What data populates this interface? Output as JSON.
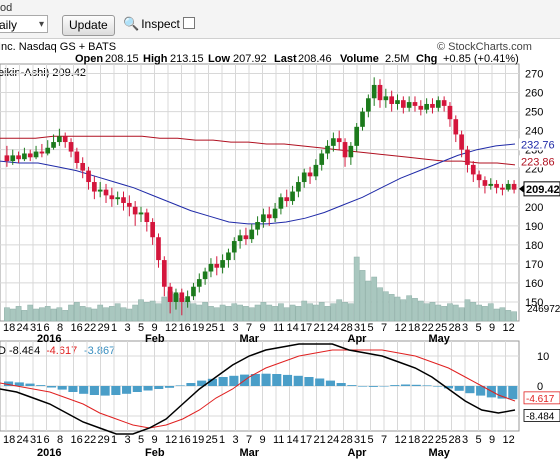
{
  "toolbar": {
    "period_label": "od",
    "period_value": "aily",
    "update_label": "Update",
    "inspect_label": "Inspect"
  },
  "header": {
    "exchange": "Inc. Nasdaq GS + BATS",
    "watermark": "© StockCharts.com",
    "open_label": "Open",
    "open_value": "208.15",
    "high_label": "High",
    "high_value": "213.15",
    "low_label": "Low",
    "low_value": "207.92",
    "last_label": "Last",
    "last_value": "208.46",
    "volume_label": "Volume",
    "volume_value": "2.5M",
    "chg_label": "Chg",
    "chg_value": "+0.85 (+0.41%)",
    "legend_text": "eikin-Ashi) 209.42"
  },
  "macd": {
    "legend_prefix": "D",
    "value_main": "-8.484",
    "value_signal": "-4.617",
    "value_hist": "-3.867"
  },
  "colors": {
    "bull": "#1c7a1c",
    "bear": "#d4163c",
    "ma_long": "#b01020",
    "ma_short": "#1f2aa8",
    "volume": "#a9c7bf",
    "hist": "#4a9ec8",
    "macd_line": "#000000",
    "signal_line": "#e02020",
    "grid": "#d8d8d8"
  },
  "chart_data": [
    {
      "type": "candlestick",
      "title": "Heikin-Ashi",
      "ylim": [
        140,
        275
      ],
      "y_ticks": [
        150,
        160,
        170,
        180,
        190,
        200,
        210,
        220,
        230,
        240,
        250,
        260,
        270
      ],
      "last_value_label": "209.42",
      "ma_long_label": "223.86",
      "ma_short_label": "232.76",
      "volume_label": "246972",
      "candles": [
        [
          227,
          224,
          232,
          221
        ],
        [
          224,
          227,
          230,
          222
        ],
        [
          227,
          225,
          229,
          223
        ],
        [
          225,
          228,
          231,
          224
        ],
        [
          228,
          226,
          230,
          224
        ],
        [
          226,
          229,
          232,
          225
        ],
        [
          229,
          228,
          233,
          226
        ],
        [
          228,
          231,
          235,
          227
        ],
        [
          231,
          234,
          238,
          230
        ],
        [
          234,
          237,
          241,
          232
        ],
        [
          237,
          234,
          239,
          231
        ],
        [
          234,
          229,
          236,
          226
        ],
        [
          229,
          223,
          231,
          220
        ],
        [
          223,
          219,
          226,
          215
        ],
        [
          219,
          213,
          221,
          209
        ],
        [
          213,
          208,
          216,
          204
        ],
        [
          208,
          209,
          213,
          205
        ],
        [
          209,
          206,
          212,
          202
        ],
        [
          206,
          204,
          210,
          200
        ],
        [
          204,
          205,
          208,
          201
        ],
        [
          205,
          202,
          208,
          198
        ],
        [
          202,
          200,
          206,
          195
        ],
        [
          200,
          196,
          203,
          190
        ],
        [
          196,
          197,
          200,
          192
        ],
        [
          197,
          192,
          199,
          187
        ],
        [
          192,
          184,
          194,
          180
        ],
        [
          184,
          172,
          186,
          168
        ],
        [
          172,
          158,
          174,
          153
        ],
        [
          158,
          150,
          160,
          144
        ],
        [
          150,
          155,
          157,
          146
        ],
        [
          155,
          150,
          157,
          143
        ],
        [
          150,
          153,
          156,
          147
        ],
        [
          153,
          158,
          160,
          151
        ],
        [
          158,
          162,
          165,
          155
        ],
        [
          162,
          166,
          168,
          159
        ],
        [
          166,
          170,
          173,
          163
        ],
        [
          170,
          168,
          174,
          164
        ],
        [
          168,
          172,
          175,
          165
        ],
        [
          172,
          176,
          178,
          168
        ],
        [
          176,
          182,
          184,
          172
        ],
        [
          182,
          185,
          188,
          178
        ],
        [
          185,
          183,
          189,
          180
        ],
        [
          183,
          188,
          191,
          181
        ],
        [
          188,
          192,
          195,
          185
        ],
        [
          192,
          196,
          199,
          189
        ],
        [
          196,
          194,
          200,
          190
        ],
        [
          194,
          199,
          202,
          192
        ],
        [
          199,
          205,
          207,
          196
        ],
        [
          205,
          203,
          209,
          200
        ],
        [
          203,
          208,
          211,
          201
        ],
        [
          208,
          213,
          216,
          205
        ],
        [
          213,
          218,
          220,
          210
        ],
        [
          218,
          216,
          221,
          212
        ],
        [
          216,
          222,
          225,
          214
        ],
        [
          222,
          228,
          230,
          219
        ],
        [
          228,
          232,
          235,
          225
        ],
        [
          232,
          236,
          239,
          229
        ],
        [
          236,
          234,
          240,
          230
        ],
        [
          234,
          226,
          236,
          221
        ],
        [
          226,
          232,
          234,
          222
        ],
        [
          232,
          242,
          244,
          229
        ],
        [
          242,
          250,
          252,
          240
        ],
        [
          250,
          257,
          259,
          247
        ],
        [
          257,
          264,
          268,
          253
        ],
        [
          264,
          256,
          267,
          252
        ],
        [
          256,
          258,
          262,
          252
        ],
        [
          258,
          254,
          261,
          250
        ],
        [
          254,
          256,
          259,
          251
        ],
        [
          256,
          252,
          258,
          249
        ],
        [
          252,
          255,
          258,
          250
        ],
        [
          255,
          253,
          258,
          250
        ],
        [
          253,
          251,
          256,
          248
        ],
        [
          251,
          254,
          257,
          249
        ],
        [
          254,
          252,
          257,
          249
        ],
        [
          252,
          256,
          258,
          250
        ],
        [
          256,
          253,
          258,
          250
        ],
        [
          253,
          246,
          255,
          242
        ],
        [
          246,
          238,
          248,
          234
        ],
        [
          238,
          230,
          240,
          226
        ],
        [
          230,
          222,
          232,
          218
        ],
        [
          222,
          217,
          224,
          213
        ],
        [
          217,
          214,
          219,
          210
        ],
        [
          214,
          211,
          216,
          207
        ],
        [
          211,
          212,
          215,
          209
        ],
        [
          212,
          210,
          214,
          207
        ],
        [
          210,
          209,
          212,
          206
        ],
        [
          209,
          212,
          214,
          208
        ],
        [
          212,
          209,
          214,
          207
        ]
      ],
      "ma_long": [
        236,
        236,
        236,
        237,
        237,
        237,
        237,
        237,
        237,
        236,
        236,
        235,
        235,
        234,
        234,
        233,
        233,
        232,
        231,
        230,
        229,
        228,
        227,
        226,
        225,
        224,
        224,
        223,
        223,
        222
      ],
      "ma_short": [
        224,
        223,
        223,
        221,
        219,
        216,
        213,
        210,
        206,
        202,
        198,
        195,
        192,
        191,
        191,
        192,
        194,
        197,
        201,
        205,
        210,
        215,
        219,
        223,
        227,
        230,
        232,
        233
      ],
      "volume": [
        10,
        9,
        11,
        8,
        12,
        9,
        10,
        11,
        9,
        10,
        8,
        12,
        14,
        11,
        10,
        9,
        12,
        10,
        11,
        13,
        10,
        9,
        12,
        16,
        14,
        15,
        13,
        18,
        22,
        20,
        17,
        15,
        13,
        12,
        14,
        11,
        10,
        12,
        11,
        13,
        12,
        11,
        10,
        12,
        14,
        12,
        11,
        13,
        10,
        12,
        11,
        15,
        13,
        12,
        14,
        11,
        13,
        16,
        14,
        13,
        48,
        38,
        30,
        33,
        25,
        22,
        20,
        18,
        16,
        19,
        17,
        15,
        13,
        14,
        12,
        11,
        13,
        12,
        10,
        16,
        14,
        12,
        11,
        13,
        9,
        10,
        8,
        7
      ]
    },
    {
      "type": "bar-line",
      "title": "MACD",
      "ylim": [
        -15,
        15
      ],
      "y_ticks": [
        -10,
        0,
        10
      ],
      "value_labels": [
        "-4.617",
        "-8.484"
      ],
      "x_ticks": [
        "18",
        "24",
        "31",
        "6",
        "8",
        "16",
        "22",
        "29",
        "1",
        "3",
        "5",
        "9",
        "12",
        "16",
        "19",
        "25",
        "1",
        "3",
        "7",
        "9",
        "11",
        "14",
        "17",
        "21",
        "24",
        "28",
        "31",
        "5",
        "7",
        "12",
        "18",
        "22",
        "25",
        "28",
        "3",
        "5",
        "9",
        "12"
      ],
      "x_major": [
        "2016",
        "Feb",
        "Mar",
        "Apr",
        "May"
      ],
      "hist": [
        1.5,
        1.2,
        0.8,
        0.3,
        -0.5,
        -1.2,
        -2.0,
        -2.6,
        -3.0,
        -3.2,
        -3.0,
        -2.6,
        -2.0,
        -1.5,
        -1.0,
        -0.6,
        0.2,
        1.0,
        1.8,
        2.4,
        3.0,
        3.4,
        3.8,
        4.0,
        4.1,
        4.0,
        3.7,
        3.4,
        3.0,
        2.5,
        1.8,
        1.0,
        0.3,
        -0.2,
        -0.3,
        -0.1,
        0.3,
        0.5,
        0.4,
        0.2,
        -0.2,
        -0.8,
        -1.6,
        -2.4,
        -3.2,
        -3.8,
        -4.2,
        -4.4
      ],
      "macd_line": [
        -1,
        -2,
        -4,
        -6,
        -9,
        -12,
        -14,
        -16,
        -16,
        -14,
        -11,
        -6,
        -1,
        3,
        7,
        10,
        12,
        13,
        14,
        14,
        14,
        12,
        11,
        10,
        8,
        6,
        3,
        -1,
        -5,
        -8,
        -9,
        -8
      ],
      "signal_line": [
        1,
        0,
        -1,
        -2,
        -4,
        -6,
        -9,
        -11,
        -13,
        -14,
        -13,
        -11,
        -8,
        -4,
        -1,
        3,
        6,
        8,
        10,
        11,
        12,
        12,
        12,
        12,
        11,
        10,
        8,
        6,
        3,
        0,
        -3,
        -5
      ]
    }
  ]
}
